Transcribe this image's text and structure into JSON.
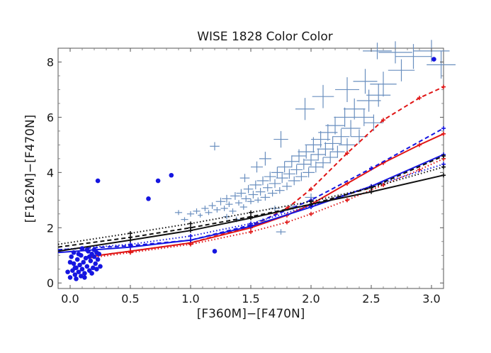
{
  "chart_data": {
    "type": "scatter",
    "title": "WISE 1828 Color Color",
    "xlabel": "[F360M]−[F470N]",
    "ylabel": "[F162M]−[F470N]",
    "xlim": [
      -0.1,
      3.1
    ],
    "ylim": [
      -0.2,
      8.5
    ],
    "xticks": [
      0.0,
      0.5,
      1.0,
      1.5,
      2.0,
      2.5,
      3.0
    ],
    "xtick_labels": [
      "0.0",
      "0.5",
      "1.0",
      "1.5",
      "2.0",
      "2.5",
      "3.0"
    ],
    "yticks": [
      0,
      2,
      4,
      6,
      8
    ],
    "ytick_labels": [
      "0",
      "2",
      "4",
      "6",
      "8"
    ],
    "grid": false,
    "legend": "none",
    "series": [
      {
        "kind": "errorbar_crosses",
        "color": "#6a8fbf",
        "points": [
          {
            "x": 1.0,
            "y": 2.5,
            "xe": 0.03,
            "ye": 0.1
          },
          {
            "x": 1.05,
            "y": 2.6,
            "xe": 0.03,
            "ye": 0.1
          },
          {
            "x": 1.08,
            "y": 2.45,
            "xe": 0.02,
            "ye": 0.08
          },
          {
            "x": 1.12,
            "y": 2.7,
            "xe": 0.03,
            "ye": 0.1
          },
          {
            "x": 1.15,
            "y": 2.55,
            "xe": 0.03,
            "ye": 0.09
          },
          {
            "x": 1.18,
            "y": 2.8,
            "xe": 0.03,
            "ye": 0.12
          },
          {
            "x": 1.22,
            "y": 2.65,
            "xe": 0.03,
            "ye": 0.1
          },
          {
            "x": 1.25,
            "y": 2.95,
            "xe": 0.04,
            "ye": 0.14
          },
          {
            "x": 1.28,
            "y": 2.7,
            "xe": 0.03,
            "ye": 0.1
          },
          {
            "x": 1.3,
            "y": 3.05,
            "xe": 0.04,
            "ye": 0.14
          },
          {
            "x": 1.32,
            "y": 2.85,
            "xe": 0.03,
            "ye": 0.1
          },
          {
            "x": 1.35,
            "y": 2.6,
            "xe": 0.03,
            "ye": 0.1
          },
          {
            "x": 1.37,
            "y": 3.15,
            "xe": 0.04,
            "ye": 0.14
          },
          {
            "x": 1.4,
            "y": 2.9,
            "xe": 0.03,
            "ye": 0.1
          },
          {
            "x": 1.42,
            "y": 3.25,
            "xe": 0.04,
            "ye": 0.15
          },
          {
            "x": 1.44,
            "y": 2.75,
            "xe": 0.03,
            "ye": 0.1
          },
          {
            "x": 1.46,
            "y": 3.05,
            "xe": 0.04,
            "ye": 0.12
          },
          {
            "x": 1.48,
            "y": 3.4,
            "xe": 0.04,
            "ye": 0.15
          },
          {
            "x": 1.5,
            "y": 2.95,
            "xe": 0.03,
            "ye": 0.1
          },
          {
            "x": 1.52,
            "y": 3.2,
            "xe": 0.04,
            "ye": 0.14
          },
          {
            "x": 1.54,
            "y": 3.55,
            "xe": 0.05,
            "ye": 0.16
          },
          {
            "x": 1.56,
            "y": 3.0,
            "xe": 0.03,
            "ye": 0.1
          },
          {
            "x": 1.58,
            "y": 3.3,
            "xe": 0.04,
            "ye": 0.14
          },
          {
            "x": 1.6,
            "y": 3.7,
            "xe": 0.05,
            "ye": 0.16
          },
          {
            "x": 1.62,
            "y": 3.1,
            "xe": 0.04,
            "ye": 0.12
          },
          {
            "x": 1.64,
            "y": 3.45,
            "xe": 0.04,
            "ye": 0.14
          },
          {
            "x": 1.66,
            "y": 3.85,
            "xe": 0.05,
            "ye": 0.18
          },
          {
            "x": 1.68,
            "y": 3.25,
            "xe": 0.04,
            "ye": 0.12
          },
          {
            "x": 1.7,
            "y": 3.6,
            "xe": 0.05,
            "ye": 0.16
          },
          {
            "x": 1.72,
            "y": 4.0,
            "xe": 0.05,
            "ye": 0.2
          },
          {
            "x": 1.74,
            "y": 3.35,
            "xe": 0.04,
            "ye": 0.12
          },
          {
            "x": 1.76,
            "y": 3.8,
            "xe": 0.05,
            "ye": 0.18
          },
          {
            "x": 1.78,
            "y": 4.2,
            "xe": 0.06,
            "ye": 0.2
          },
          {
            "x": 1.8,
            "y": 3.5,
            "xe": 0.04,
            "ye": 0.14
          },
          {
            "x": 1.82,
            "y": 3.95,
            "xe": 0.05,
            "ye": 0.18
          },
          {
            "x": 1.84,
            "y": 4.4,
            "xe": 0.06,
            "ye": 0.22
          },
          {
            "x": 1.86,
            "y": 3.7,
            "xe": 0.05,
            "ye": 0.16
          },
          {
            "x": 1.88,
            "y": 4.1,
            "xe": 0.05,
            "ye": 0.18
          },
          {
            "x": 1.9,
            "y": 4.6,
            "xe": 0.06,
            "ye": 0.24
          },
          {
            "x": 1.92,
            "y": 3.85,
            "xe": 0.05,
            "ye": 0.16
          },
          {
            "x": 1.94,
            "y": 4.3,
            "xe": 0.06,
            "ye": 0.2
          },
          {
            "x": 1.96,
            "y": 4.75,
            "xe": 0.07,
            "ye": 0.25
          },
          {
            "x": 1.98,
            "y": 4.0,
            "xe": 0.05,
            "ye": 0.18
          },
          {
            "x": 2.0,
            "y": 4.45,
            "xe": 0.06,
            "ye": 0.22
          },
          {
            "x": 2.02,
            "y": 5.0,
            "xe": 0.07,
            "ye": 0.28
          },
          {
            "x": 2.04,
            "y": 4.2,
            "xe": 0.06,
            "ye": 0.2
          },
          {
            "x": 2.06,
            "y": 4.65,
            "xe": 0.06,
            "ye": 0.22
          },
          {
            "x": 2.08,
            "y": 5.2,
            "xe": 0.08,
            "ye": 0.3
          },
          {
            "x": 2.1,
            "y": 4.35,
            "xe": 0.06,
            "ye": 0.2
          },
          {
            "x": 2.12,
            "y": 4.85,
            "xe": 0.07,
            "ye": 0.25
          },
          {
            "x": 2.14,
            "y": 5.45,
            "xe": 0.08,
            "ye": 0.3
          },
          {
            "x": 2.16,
            "y": 4.55,
            "xe": 0.06,
            "ye": 0.22
          },
          {
            "x": 2.18,
            "y": 5.05,
            "xe": 0.07,
            "ye": 0.26
          },
          {
            "x": 2.2,
            "y": 5.7,
            "xe": 0.08,
            "ye": 0.32
          },
          {
            "x": 2.22,
            "y": 4.75,
            "xe": 0.06,
            "ye": 0.22
          },
          {
            "x": 2.25,
            "y": 5.3,
            "xe": 0.07,
            "ye": 0.28
          },
          {
            "x": 2.28,
            "y": 6.0,
            "xe": 0.09,
            "ye": 0.35
          },
          {
            "x": 2.3,
            "y": 5.0,
            "xe": 0.07,
            "ye": 0.24
          },
          {
            "x": 2.33,
            "y": 5.6,
            "xe": 0.08,
            "ye": 0.3
          },
          {
            "x": 2.36,
            "y": 6.3,
            "xe": 0.09,
            "ye": 0.38
          },
          {
            "x": 2.4,
            "y": 5.3,
            "xe": 0.07,
            "ye": 0.26
          },
          {
            "x": 2.44,
            "y": 6.0,
            "xe": 0.08,
            "ye": 0.32
          },
          {
            "x": 2.48,
            "y": 6.6,
            "xe": 0.1,
            "ye": 0.4
          },
          {
            "x": 2.52,
            "y": 5.8,
            "xe": 0.08,
            "ye": 0.3
          },
          {
            "x": 2.56,
            "y": 6.8,
            "xe": 0.1,
            "ye": 0.42
          },
          {
            "x": 2.6,
            "y": 7.2,
            "xe": 0.11,
            "ye": 0.45
          },
          {
            "x": 1.95,
            "y": 6.3,
            "xe": 0.08,
            "ye": 0.4
          },
          {
            "x": 2.1,
            "y": 6.75,
            "xe": 0.09,
            "ye": 0.42
          },
          {
            "x": 2.3,
            "y": 7.0,
            "xe": 0.1,
            "ye": 0.45
          },
          {
            "x": 2.45,
            "y": 7.3,
            "xe": 0.1,
            "ye": 0.45
          },
          {
            "x": 2.55,
            "y": 8.4,
            "xe": 0.12,
            "ye": 0.3
          },
          {
            "x": 2.7,
            "y": 8.35,
            "xe": 0.14,
            "ye": 0.4
          },
          {
            "x": 2.85,
            "y": 8.2,
            "xe": 0.15,
            "ye": 0.45
          },
          {
            "x": 3.0,
            "y": 8.4,
            "xe": 0.15,
            "ye": 0.4
          },
          {
            "x": 3.08,
            "y": 7.9,
            "xe": 0.12,
            "ye": 0.5
          },
          {
            "x": 2.75,
            "y": 7.7,
            "xe": 0.11,
            "ye": 0.4
          },
          {
            "x": 1.75,
            "y": 5.2,
            "xe": 0.06,
            "ye": 0.3
          },
          {
            "x": 1.62,
            "y": 4.5,
            "xe": 0.05,
            "ye": 0.25
          },
          {
            "x": 1.2,
            "y": 4.95,
            "xe": 0.04,
            "ye": 0.15
          },
          {
            "x": 1.45,
            "y": 3.8,
            "xe": 0.04,
            "ye": 0.15
          },
          {
            "x": 1.55,
            "y": 4.2,
            "xe": 0.05,
            "ye": 0.2
          },
          {
            "x": 1.85,
            "y": 2.75,
            "xe": 0.05,
            "ye": 0.12
          },
          {
            "x": 2.0,
            "y": 3.1,
            "xe": 0.05,
            "ye": 0.14
          },
          {
            "x": 1.7,
            "y": 2.7,
            "xe": 0.04,
            "ye": 0.1
          },
          {
            "x": 1.3,
            "y": 2.4,
            "xe": 0.03,
            "ye": 0.1
          },
          {
            "x": 1.38,
            "y": 2.3,
            "xe": 0.03,
            "ye": 0.1
          },
          {
            "x": 1.6,
            "y": 2.25,
            "xe": 0.04,
            "ye": 0.1
          },
          {
            "x": 1.75,
            "y": 1.85,
            "xe": 0.04,
            "ye": 0.1
          },
          {
            "x": 0.95,
            "y": 2.3,
            "xe": 0.03,
            "ye": 0.08
          },
          {
            "x": 0.9,
            "y": 2.55,
            "xe": 0.03,
            "ye": 0.09
          }
        ]
      },
      {
        "kind": "dots",
        "color": "#1515e0",
        "points": [
          {
            "x": 0.0,
            "y": 0.2
          },
          {
            "x": 0.02,
            "y": 0.45
          },
          {
            "x": 0.03,
            "y": 0.7
          },
          {
            "x": 0.04,
            "y": 0.3
          },
          {
            "x": 0.05,
            "y": 0.55
          },
          {
            "x": 0.06,
            "y": 0.85
          },
          {
            "x": 0.07,
            "y": 0.4
          },
          {
            "x": 0.08,
            "y": 0.65
          },
          {
            "x": 0.09,
            "y": 1.0
          },
          {
            "x": 0.1,
            "y": 0.5
          },
          {
            "x": 0.11,
            "y": 0.75
          },
          {
            "x": 0.12,
            "y": 0.35
          },
          {
            "x": 0.13,
            "y": 0.9
          },
          {
            "x": 0.14,
            "y": 0.6
          },
          {
            "x": 0.15,
            "y": 1.15
          },
          {
            "x": 0.16,
            "y": 0.45
          },
          {
            "x": 0.17,
            "y": 0.8
          },
          {
            "x": 0.18,
            "y": 1.05
          },
          {
            "x": 0.19,
            "y": 0.55
          },
          {
            "x": 0.2,
            "y": 0.95
          },
          {
            "x": 0.21,
            "y": 0.7
          },
          {
            "x": 0.22,
            "y": 1.1
          },
          {
            "x": 0.23,
            "y": 0.85
          },
          {
            "x": 0.25,
            "y": 0.6
          },
          {
            "x": 0.01,
            "y": 0.95
          },
          {
            "x": 0.03,
            "y": 1.1
          },
          {
            "x": 0.1,
            "y": 1.25
          },
          {
            "x": 0.14,
            "y": 1.2
          },
          {
            "x": 0.05,
            "y": 0.15
          },
          {
            "x": 0.09,
            "y": 0.25
          },
          {
            "x": 0.18,
            "y": 0.35
          },
          {
            "x": 0.2,
            "y": 1.2
          },
          {
            "x": 0.24,
            "y": 1.05
          },
          {
            "x": 0.07,
            "y": 1.05
          },
          {
            "x": 0.12,
            "y": 0.2
          },
          {
            "x": 0.16,
            "y": 0.95
          },
          {
            "x": 0.22,
            "y": 0.5
          },
          {
            "x": -0.02,
            "y": 0.4
          },
          {
            "x": 0.0,
            "y": 0.75
          },
          {
            "x": 0.04,
            "y": 0.55
          },
          {
            "x": 0.23,
            "y": 3.7
          },
          {
            "x": 0.65,
            "y": 3.05
          },
          {
            "x": 0.73,
            "y": 3.7
          },
          {
            "x": 0.84,
            "y": 3.9
          },
          {
            "x": 1.2,
            "y": 1.15
          },
          {
            "x": 3.02,
            "y": 8.1
          }
        ]
      },
      {
        "kind": "line",
        "color": "#e01515",
        "dash": "solid",
        "x": [
          0.15,
          0.5,
          1.0,
          1.5,
          1.8,
          2.0,
          2.3,
          2.6,
          2.9,
          3.1
        ],
        "y": [
          0.95,
          1.15,
          1.45,
          2.0,
          2.45,
          2.85,
          3.6,
          4.35,
          5.0,
          5.4
        ]
      },
      {
        "kind": "line",
        "color": "#e01515",
        "dash": "dashed",
        "x": [
          0.15,
          0.5,
          1.0,
          1.5,
          1.8,
          2.0,
          2.3,
          2.6,
          2.9,
          3.1
        ],
        "y": [
          0.95,
          1.15,
          1.45,
          2.05,
          2.7,
          3.4,
          4.7,
          5.9,
          6.7,
          7.1
        ]
      },
      {
        "kind": "line",
        "color": "#e01515",
        "dash": "dotted",
        "x": [
          0.15,
          0.5,
          1.0,
          1.5,
          1.8,
          2.0,
          2.3,
          2.6,
          2.9,
          3.1
        ],
        "y": [
          0.9,
          1.1,
          1.4,
          1.85,
          2.2,
          2.5,
          3.0,
          3.55,
          4.1,
          4.5
        ]
      },
      {
        "kind": "line",
        "color": "#1515e0",
        "dash": "solid",
        "x": [
          -0.1,
          0.5,
          1.0,
          1.5,
          2.0,
          2.5,
          3.1
        ],
        "y": [
          1.1,
          1.3,
          1.55,
          2.05,
          2.75,
          3.5,
          4.65
        ]
      },
      {
        "kind": "line",
        "color": "#1515e0",
        "dash": "dashed",
        "x": [
          -0.1,
          0.5,
          1.0,
          1.5,
          2.0,
          2.5,
          3.1
        ],
        "y": [
          1.2,
          1.35,
          1.55,
          2.1,
          3.0,
          4.15,
          5.6
        ]
      },
      {
        "kind": "line",
        "color": "#1515e0",
        "dash": "dotted",
        "x": [
          -0.1,
          0.5,
          1.0,
          1.5,
          2.0,
          2.5,
          3.1
        ],
        "y": [
          1.2,
          1.4,
          1.7,
          2.15,
          2.8,
          3.5,
          4.3
        ]
      },
      {
        "kind": "line",
        "color": "#111111",
        "dash": "solid",
        "x": [
          -0.1,
          0.5,
          1.0,
          1.5,
          2.0,
          2.5,
          3.1
        ],
        "y": [
          1.15,
          1.55,
          1.9,
          2.35,
          2.85,
          3.3,
          3.9
        ]
      },
      {
        "kind": "line",
        "color": "#111111",
        "dash": "dashed",
        "x": [
          -0.1,
          0.5,
          1.0,
          1.5,
          2.0,
          2.5,
          3.1
        ],
        "y": [
          1.3,
          1.65,
          2.0,
          2.4,
          2.85,
          3.45,
          4.6
        ]
      },
      {
        "kind": "line",
        "color": "#111111",
        "dash": "dotted",
        "x": [
          -0.1,
          0.5,
          1.0,
          1.5,
          2.0,
          2.5,
          3.1
        ],
        "y": [
          1.4,
          1.8,
          2.15,
          2.55,
          2.95,
          3.45,
          4.2
        ]
      }
    ]
  }
}
